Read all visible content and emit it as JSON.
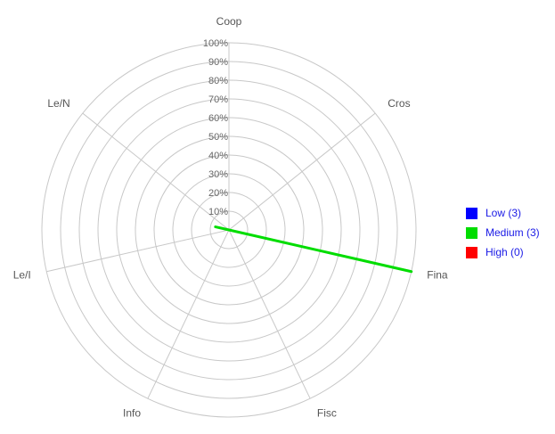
{
  "chart_data": {
    "type": "radar",
    "axes": [
      "Coop",
      "Cros",
      "Fina",
      "Fisc",
      "Info",
      "Le/I",
      "Le/N"
    ],
    "radial_ticks": [
      "10%",
      "20%",
      "30%",
      "40%",
      "50%",
      "60%",
      "70%",
      "80%",
      "90%",
      "100%"
    ],
    "rmax": 100,
    "series": [
      {
        "name": "Low (3)",
        "color": "#0000ff",
        "values": [
          0,
          0,
          0,
          0,
          0,
          0,
          0
        ]
      },
      {
        "name": "Medium (3)",
        "color": "#00dd00",
        "values": [
          0,
          0,
          100,
          0,
          0,
          0,
          0
        ]
      },
      {
        "name": "High (0)",
        "color": "#ff0000",
        "values": [
          0,
          0,
          0,
          0,
          0,
          0,
          0
        ]
      }
    ],
    "grid": true,
    "legend_position": "right"
  }
}
